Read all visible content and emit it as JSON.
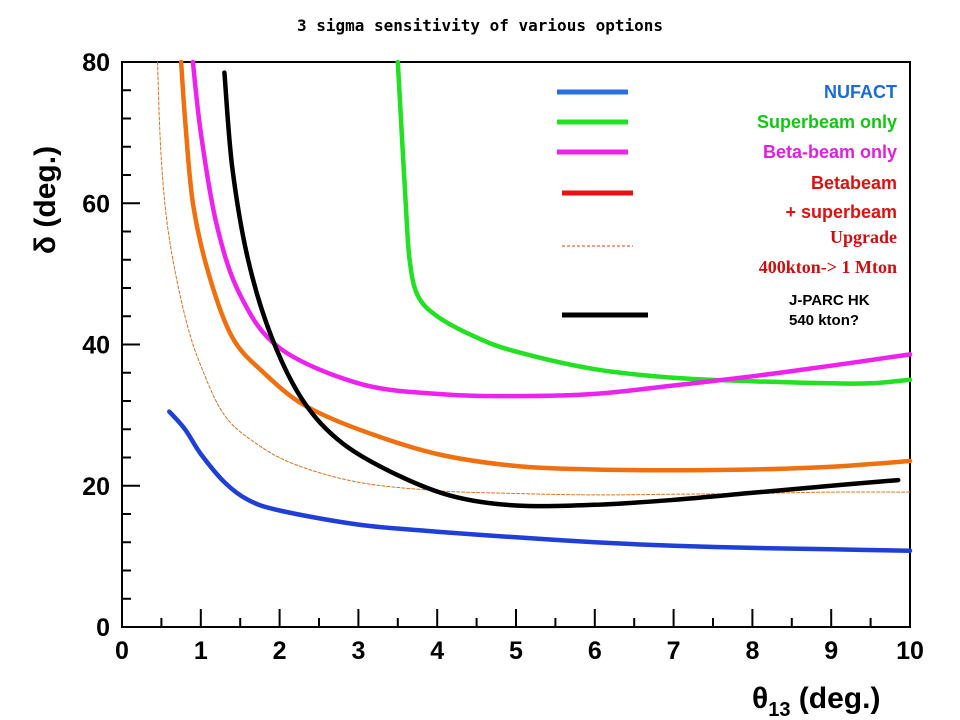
{
  "chart_data": {
    "type": "line",
    "title": "3 sigma sensitivity of various options",
    "xlabel": "θ13 (deg.)",
    "ylabel": "δ (deg.)",
    "xlim": [
      0,
      10
    ],
    "ylim": [
      0,
      80
    ],
    "xticks": [
      0,
      1,
      2,
      3,
      4,
      5,
      6,
      7,
      8,
      9,
      10
    ],
    "yticks": [
      0,
      20,
      40,
      60,
      80
    ],
    "grid": false,
    "legend_position": "top-right",
    "series": [
      {
        "name": "NUFACT",
        "color": "#1f3fd6",
        "style": "solid",
        "points": [
          [
            0.6,
            30.5
          ],
          [
            0.8,
            28
          ],
          [
            1.0,
            24.5
          ],
          [
            1.3,
            20.5
          ],
          [
            1.6,
            18
          ],
          [
            2.0,
            16.5
          ],
          [
            3.0,
            14.5
          ],
          [
            4.0,
            13.5
          ],
          [
            5.0,
            12.7
          ],
          [
            6.0,
            12.0
          ],
          [
            7.0,
            11.5
          ],
          [
            8.0,
            11.2
          ],
          [
            9.0,
            11.0
          ],
          [
            10.0,
            10.8
          ]
        ]
      },
      {
        "name": "Superbeam only",
        "color": "#22e022",
        "style": "solid",
        "points": [
          [
            3.5,
            80
          ],
          [
            3.55,
            70
          ],
          [
            3.6,
            60
          ],
          [
            3.65,
            52
          ],
          [
            3.75,
            47
          ],
          [
            4.0,
            44
          ],
          [
            4.5,
            41
          ],
          [
            5.0,
            39
          ],
          [
            6.0,
            36.5
          ],
          [
            7.0,
            35.3
          ],
          [
            8.0,
            34.8
          ],
          [
            9.0,
            34.5
          ],
          [
            9.5,
            34.5
          ],
          [
            10.0,
            35.0
          ]
        ]
      },
      {
        "name": "Beta-beam only",
        "color": "#ee22ee",
        "style": "solid",
        "points": [
          [
            0.9,
            80
          ],
          [
            1.0,
            70
          ],
          [
            1.2,
            57
          ],
          [
            1.5,
            47
          ],
          [
            2.0,
            39.5
          ],
          [
            3.0,
            34.5
          ],
          [
            4.0,
            33.0
          ],
          [
            5.0,
            32.7
          ],
          [
            6.0,
            33.0
          ],
          [
            7.0,
            34.2
          ],
          [
            8.0,
            35.5
          ],
          [
            9.0,
            37.0
          ],
          [
            10.0,
            38.6
          ]
        ]
      },
      {
        "name": "Betabeam + superbeam",
        "color": "#f07010",
        "style": "solid",
        "points": [
          [
            0.75,
            80
          ],
          [
            0.8,
            72
          ],
          [
            0.9,
            60
          ],
          [
            1.1,
            50
          ],
          [
            1.4,
            41
          ],
          [
            1.8,
            36
          ],
          [
            2.3,
            31.5
          ],
          [
            3.0,
            28
          ],
          [
            4.0,
            24.5
          ],
          [
            5.0,
            22.8
          ],
          [
            6.0,
            22.3
          ],
          [
            7.0,
            22.2
          ],
          [
            8.0,
            22.3
          ],
          [
            9.0,
            22.7
          ],
          [
            10.0,
            23.5
          ]
        ]
      },
      {
        "name": "Upgrade 400kton-> 1 Mton",
        "color": "#e0701a",
        "style": "dashed",
        "points": [
          [
            0.45,
            80
          ],
          [
            0.5,
            66
          ],
          [
            0.6,
            55
          ],
          [
            0.8,
            44
          ],
          [
            1.0,
            37
          ],
          [
            1.3,
            30
          ],
          [
            1.7,
            26
          ],
          [
            2.2,
            23
          ],
          [
            3.0,
            20.5
          ],
          [
            4.0,
            19.3
          ],
          [
            5.0,
            18.9
          ],
          [
            6.0,
            18.7
          ],
          [
            7.0,
            18.8
          ],
          [
            8.0,
            18.9
          ],
          [
            9.0,
            19.1
          ],
          [
            10.0,
            19.1
          ]
        ]
      },
      {
        "name": "J-PARC HK 540 kton?",
        "color": "#000000",
        "style": "solid",
        "points": [
          [
            1.3,
            78.5
          ],
          [
            1.4,
            65
          ],
          [
            1.6,
            52
          ],
          [
            1.9,
            41
          ],
          [
            2.3,
            32
          ],
          [
            2.8,
            26
          ],
          [
            3.5,
            21.5
          ],
          [
            4.2,
            18.5
          ],
          [
            5.0,
            17.2
          ],
          [
            6.0,
            17.3
          ],
          [
            7.0,
            18.0
          ],
          [
            8.0,
            19.0
          ],
          [
            9.0,
            20.0
          ],
          [
            9.85,
            20.8
          ]
        ]
      }
    ],
    "legend": [
      {
        "label_lines": [
          "NUFACT"
        ],
        "color": "#2a6fe0",
        "text_color": "#1a6ad8",
        "style": "solid",
        "font": "sans"
      },
      {
        "label_lines": [
          "Superbeam only"
        ],
        "color": "#22e022",
        "text_color": "#10c810",
        "style": "solid",
        "font": "sans"
      },
      {
        "label_lines": [
          "Beta-beam only"
        ],
        "color": "#ee22ee",
        "text_color": "#e020e0",
        "style": "solid",
        "font": "sans"
      },
      {
        "label_lines": [
          "Betabeam",
          "+ superbeam"
        ],
        "color": "#e81010",
        "text_color": "#e01010",
        "style": "solid",
        "font": "sans"
      },
      {
        "label_lines": [
          "Upgrade",
          "400kton-> 1 Mton"
        ],
        "color": "#e04010",
        "text_color": "#cc1010",
        "style": "dashed",
        "font": "serif"
      },
      {
        "label_lines": [
          "J-PARC HK",
          "540 kton?"
        ],
        "color": "#000000",
        "text_color": "#000000",
        "style": "solid",
        "font": "small"
      }
    ]
  }
}
